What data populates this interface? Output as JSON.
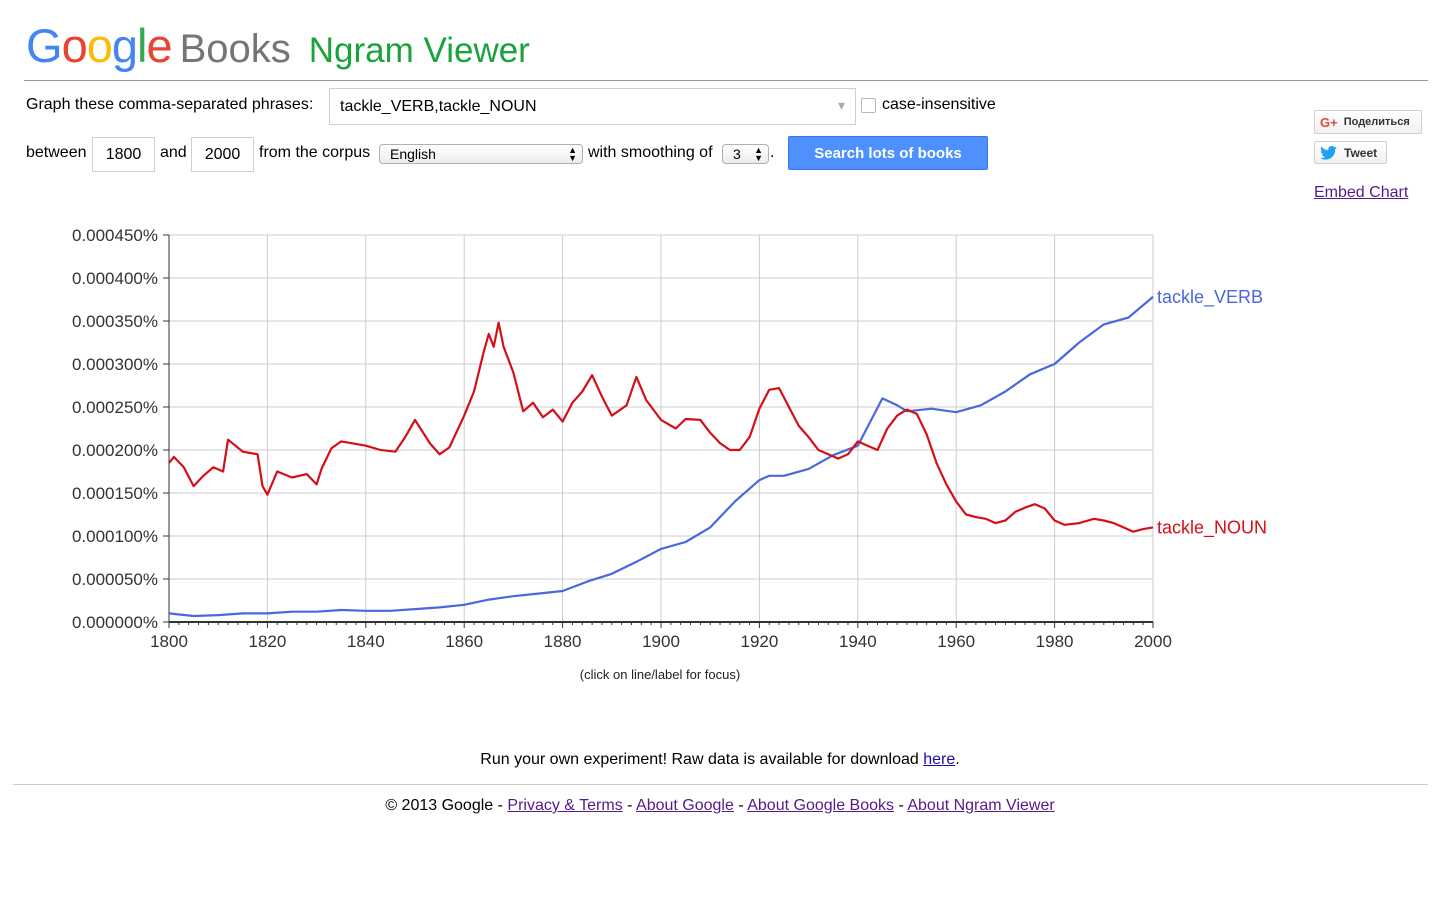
{
  "header": {
    "logo_google": "Google",
    "logo_books": "Books",
    "app_title": "Ngram Viewer"
  },
  "form": {
    "phrases_label": "Graph these comma-separated phrases:",
    "phrases_value": "tackle_VERB,tackle_NOUN",
    "case_label": "case-insensitive",
    "between_label": "between",
    "start_year": "1800",
    "and_label": "and",
    "end_year": "2000",
    "corpus_label": "from the corpus",
    "corpus_value": "English",
    "smoothing_label": "with smoothing of",
    "smoothing_value": "3",
    "period": ".",
    "search_label": "Search lots of books"
  },
  "social": {
    "share_label": "Поделиться",
    "tweet_label": "Tweet",
    "embed_label": "Embed Chart"
  },
  "chart_hint": "(click on line/label for focus)",
  "footer": {
    "experiment_text": "Run your own experiment! Raw data is available for download ",
    "here_link": "here",
    "experiment_end": ".",
    "copyright": "© 2013 Google - ",
    "privacy": "Privacy & Terms",
    "about_google": "About Google",
    "about_books": "About Google Books",
    "about_ngram": "About Ngram Viewer",
    "sep": " - "
  },
  "colors": {
    "verb": "#4a67dc",
    "noun": "#d50f18",
    "search_button": "#4d90fe",
    "title_green": "#1aa33a"
  },
  "chart_data": {
    "type": "line",
    "xlabel": "",
    "ylabel": "",
    "xlim": [
      1800,
      2000
    ],
    "ylim": [
      0,
      0.00045
    ],
    "grid": true,
    "legend": "right-end labels",
    "x_ticks": [
      "1800",
      "1820",
      "1840",
      "1860",
      "1880",
      "1900",
      "1920",
      "1940",
      "1960",
      "1980",
      "2000"
    ],
    "y_ticks": [
      "0.000000%",
      "0.000050%",
      "0.000100%",
      "0.000150%",
      "0.000200%",
      "0.000250%",
      "0.000300%",
      "0.000350%",
      "0.000400%",
      "0.000450%"
    ],
    "series": [
      {
        "name": "tackle_VERB",
        "color": "#4a67dc",
        "x": [
          1800,
          1805,
          1810,
          1815,
          1820,
          1825,
          1830,
          1835,
          1840,
          1845,
          1850,
          1855,
          1860,
          1865,
          1870,
          1875,
          1880,
          1885,
          1890,
          1895,
          1900,
          1905,
          1910,
          1915,
          1920,
          1922,
          1925,
          1930,
          1935,
          1940,
          1945,
          1948,
          1950,
          1955,
          1960,
          1965,
          1970,
          1975,
          1980,
          1985,
          1990,
          1995,
          2000
        ],
        "y": [
          1e-05,
          7e-06,
          8e-06,
          1e-05,
          1e-05,
          1.2e-05,
          1.2e-05,
          1.4e-05,
          1.3e-05,
          1.3e-05,
          1.5e-05,
          1.7e-05,
          2e-05,
          2.6e-05,
          3e-05,
          3.3e-05,
          3.6e-05,
          4.7e-05,
          5.6e-05,
          7e-05,
          8.5e-05,
          9.3e-05,
          0.00011,
          0.00014,
          0.000165,
          0.00017,
          0.00017,
          0.000178,
          0.000194,
          0.000205,
          0.00026,
          0.000252,
          0.000245,
          0.000248,
          0.000244,
          0.000252,
          0.000268,
          0.000288,
          0.0003,
          0.000325,
          0.000346,
          0.000354,
          0.000378
        ]
      },
      {
        "name": "tackle_NOUN",
        "color": "#d50f18",
        "x": [
          1800,
          1801,
          1803,
          1805,
          1807,
          1809,
          1811,
          1812,
          1815,
          1818,
          1819,
          1820,
          1822,
          1825,
          1828,
          1830,
          1831,
          1833,
          1835,
          1837,
          1840,
          1843,
          1846,
          1848,
          1850,
          1853,
          1855,
          1857,
          1860,
          1862,
          1864,
          1865,
          1866,
          1867,
          1868,
          1870,
          1872,
          1874,
          1876,
          1878,
          1880,
          1882,
          1884,
          1886,
          1888,
          1890,
          1893,
          1895,
          1897,
          1900,
          1903,
          1905,
          1908,
          1910,
          1912,
          1914,
          1916,
          1918,
          1920,
          1922,
          1924,
          1926,
          1928,
          1930,
          1932,
          1934,
          1936,
          1938,
          1940,
          1942,
          1944,
          1946,
          1948,
          1950,
          1952,
          1954,
          1956,
          1958,
          1960,
          1962,
          1964,
          1966,
          1968,
          1970,
          1972,
          1974,
          1976,
          1978,
          1980,
          1982,
          1985,
          1988,
          1990,
          1992,
          1994,
          1996,
          1998,
          2000
        ],
        "y": [
          0.000185,
          0.000192,
          0.00018,
          0.000158,
          0.00017,
          0.00018,
          0.000175,
          0.000212,
          0.000198,
          0.000195,
          0.000158,
          0.000148,
          0.000175,
          0.000168,
          0.000172,
          0.00016,
          0.000178,
          0.000202,
          0.00021,
          0.000208,
          0.000205,
          0.0002,
          0.000198,
          0.000215,
          0.000235,
          0.000208,
          0.000195,
          0.000203,
          0.00024,
          0.000268,
          0.000315,
          0.000335,
          0.00032,
          0.000348,
          0.00032,
          0.00029,
          0.000245,
          0.000255,
          0.000238,
          0.000247,
          0.000233,
          0.000255,
          0.000268,
          0.000287,
          0.000262,
          0.00024,
          0.000252,
          0.000285,
          0.000258,
          0.000235,
          0.000225,
          0.000236,
          0.000235,
          0.00022,
          0.000208,
          0.0002,
          0.0002,
          0.000215,
          0.000248,
          0.00027,
          0.000272,
          0.00025,
          0.000228,
          0.000215,
          0.0002,
          0.000195,
          0.00019,
          0.000195,
          0.00021,
          0.000205,
          0.0002,
          0.000225,
          0.00024,
          0.000247,
          0.000242,
          0.000218,
          0.000185,
          0.00016,
          0.00014,
          0.000125,
          0.000122,
          0.00012,
          0.000115,
          0.000118,
          0.000128,
          0.000133,
          0.000137,
          0.000132,
          0.000118,
          0.000113,
          0.000115,
          0.00012,
          0.000118,
          0.000115,
          0.00011,
          0.000105,
          0.000108,
          0.00011
        ]
      }
    ]
  }
}
